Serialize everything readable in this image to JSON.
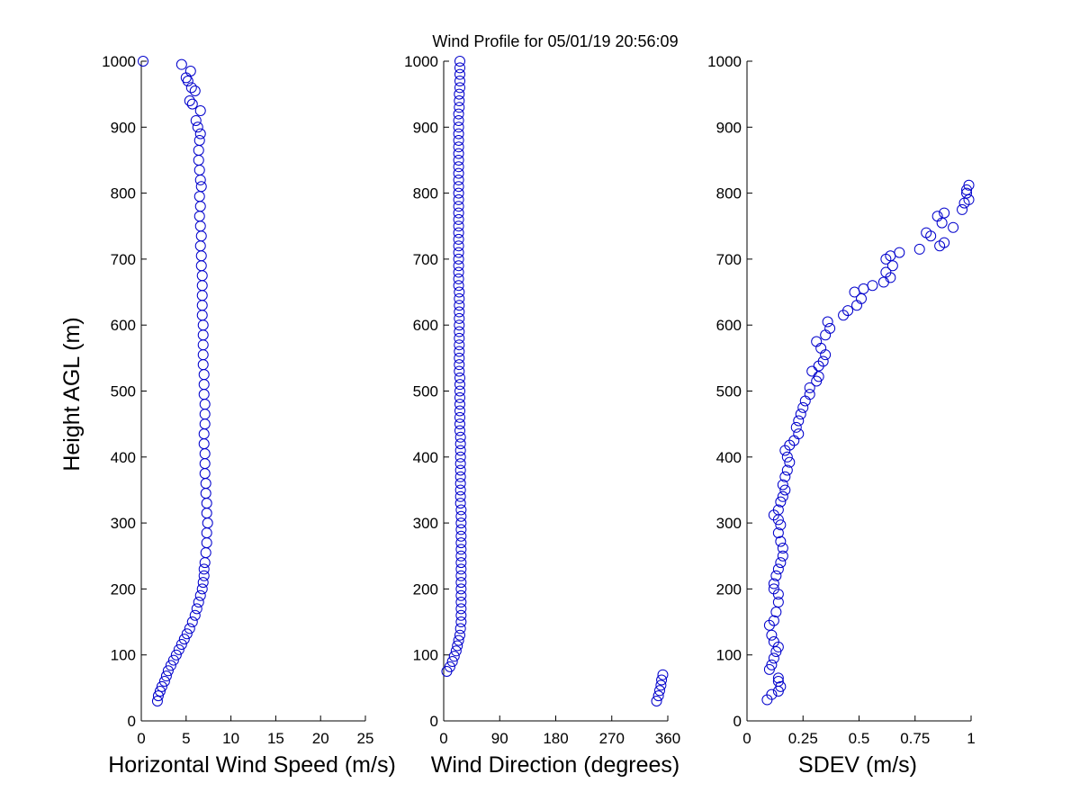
{
  "figure": {
    "title": "Wind Profile for  05/01/19 20:56:09",
    "ylabel": "Height AGL (m)",
    "marker_color": "#0000cc"
  },
  "chart_data": [
    {
      "type": "scatter",
      "xlabel": "Horizontal Wind Speed (m/s)",
      "ylabel": "Height AGL (m)",
      "xlim": [
        0,
        25
      ],
      "ylim": [
        0,
        1000
      ],
      "xticks": [
        0,
        5,
        10,
        15,
        20,
        25
      ],
      "yticks": [
        0,
        100,
        200,
        300,
        400,
        500,
        600,
        700,
        800,
        900,
        1000
      ],
      "grid": false,
      "marker": "open-circle",
      "points": [
        [
          1.8,
          30
        ],
        [
          1.9,
          38
        ],
        [
          2.1,
          45
        ],
        [
          2.3,
          52
        ],
        [
          2.6,
          60
        ],
        [
          2.8,
          68
        ],
        [
          3.0,
          76
        ],
        [
          3.3,
          84
        ],
        [
          3.6,
          92
        ],
        [
          3.9,
          100
        ],
        [
          4.2,
          108
        ],
        [
          4.5,
          116
        ],
        [
          4.8,
          124
        ],
        [
          5.1,
          132
        ],
        [
          5.4,
          140
        ],
        [
          5.7,
          150
        ],
        [
          6.0,
          160
        ],
        [
          6.2,
          170
        ],
        [
          6.4,
          180
        ],
        [
          6.6,
          190
        ],
        [
          6.8,
          200
        ],
        [
          6.9,
          210
        ],
        [
          7.0,
          220
        ],
        [
          7.0,
          230
        ],
        [
          7.1,
          240
        ],
        [
          7.2,
          255
        ],
        [
          7.3,
          270
        ],
        [
          7.3,
          285
        ],
        [
          7.4,
          300
        ],
        [
          7.3,
          315
        ],
        [
          7.3,
          330
        ],
        [
          7.2,
          345
        ],
        [
          7.2,
          360
        ],
        [
          7.1,
          375
        ],
        [
          7.1,
          390
        ],
        [
          7.1,
          405
        ],
        [
          7.0,
          420
        ],
        [
          7.0,
          435
        ],
        [
          7.1,
          450
        ],
        [
          7.1,
          465
        ],
        [
          7.1,
          480
        ],
        [
          7.0,
          495
        ],
        [
          7.0,
          510
        ],
        [
          7.0,
          525
        ],
        [
          6.9,
          540
        ],
        [
          6.9,
          555
        ],
        [
          6.9,
          570
        ],
        [
          6.9,
          585
        ],
        [
          6.9,
          600
        ],
        [
          6.8,
          615
        ],
        [
          6.8,
          630
        ],
        [
          6.8,
          645
        ],
        [
          6.8,
          660
        ],
        [
          6.8,
          675
        ],
        [
          6.7,
          690
        ],
        [
          6.7,
          705
        ],
        [
          6.6,
          720
        ],
        [
          6.7,
          735
        ],
        [
          6.6,
          750
        ],
        [
          6.5,
          765
        ],
        [
          6.6,
          780
        ],
        [
          6.5,
          795
        ],
        [
          6.7,
          810
        ],
        [
          6.6,
          820
        ],
        [
          6.5,
          835
        ],
        [
          6.4,
          850
        ],
        [
          6.4,
          865
        ],
        [
          6.5,
          880
        ],
        [
          6.6,
          890
        ],
        [
          6.3,
          900
        ],
        [
          6.1,
          910
        ],
        [
          6.6,
          925
        ],
        [
          5.7,
          935
        ],
        [
          5.4,
          940
        ],
        [
          6.0,
          955
        ],
        [
          5.6,
          960
        ],
        [
          5.2,
          970
        ],
        [
          5.0,
          975
        ],
        [
          5.5,
          985
        ],
        [
          4.5,
          995
        ],
        [
          0.2,
          1000
        ]
      ]
    },
    {
      "type": "scatter",
      "xlabel": "Wind Direction (degrees)",
      "xlim": [
        0,
        360
      ],
      "ylim": [
        0,
        1000
      ],
      "xticks": [
        0,
        90,
        180,
        270,
        360
      ],
      "yticks": [
        0,
        100,
        200,
        300,
        400,
        500,
        600,
        700,
        800,
        900,
        1000
      ],
      "grid": false,
      "marker": "open-circle",
      "points": [
        [
          342,
          30
        ],
        [
          345,
          38
        ],
        [
          347,
          46
        ],
        [
          349,
          54
        ],
        [
          350,
          62
        ],
        [
          352,
          70
        ],
        [
          5,
          75
        ],
        [
          10,
          82
        ],
        [
          14,
          90
        ],
        [
          17,
          98
        ],
        [
          20,
          106
        ],
        [
          22,
          114
        ],
        [
          24,
          122
        ],
        [
          26,
          130
        ],
        [
          27,
          140
        ],
        [
          28,
          150
        ],
        [
          28,
          160
        ],
        [
          28,
          170
        ],
        [
          28,
          180
        ],
        [
          28,
          190
        ],
        [
          28,
          200
        ],
        [
          28,
          210
        ],
        [
          28,
          220
        ],
        [
          28,
          230
        ],
        [
          28,
          240
        ],
        [
          28,
          250
        ],
        [
          28,
          260
        ],
        [
          28,
          270
        ],
        [
          28,
          280
        ],
        [
          28,
          290
        ],
        [
          28,
          300
        ],
        [
          28,
          310
        ],
        [
          28,
          320
        ],
        [
          27,
          330
        ],
        [
          27,
          340
        ],
        [
          27,
          350
        ],
        [
          27,
          360
        ],
        [
          27,
          370
        ],
        [
          27,
          380
        ],
        [
          27,
          390
        ],
        [
          27,
          400
        ],
        [
          27,
          410
        ],
        [
          27,
          420
        ],
        [
          27,
          430
        ],
        [
          26,
          440
        ],
        [
          26,
          450
        ],
        [
          26,
          460
        ],
        [
          26,
          470
        ],
        [
          26,
          480
        ],
        [
          26,
          490
        ],
        [
          26,
          500
        ],
        [
          26,
          510
        ],
        [
          26,
          520
        ],
        [
          25,
          530
        ],
        [
          25,
          540
        ],
        [
          25,
          550
        ],
        [
          25,
          560
        ],
        [
          25,
          570
        ],
        [
          25,
          580
        ],
        [
          25,
          590
        ],
        [
          25,
          600
        ],
        [
          25,
          610
        ],
        [
          25,
          620
        ],
        [
          25,
          630
        ],
        [
          25,
          640
        ],
        [
          25,
          650
        ],
        [
          24,
          660
        ],
        [
          24,
          670
        ],
        [
          24,
          680
        ],
        [
          24,
          690
        ],
        [
          24,
          700
        ],
        [
          24,
          710
        ],
        [
          24,
          720
        ],
        [
          24,
          730
        ],
        [
          24,
          740
        ],
        [
          24,
          750
        ],
        [
          24,
          760
        ],
        [
          24,
          770
        ],
        [
          24,
          780
        ],
        [
          24,
          790
        ],
        [
          24,
          800
        ],
        [
          24,
          810
        ],
        [
          24,
          820
        ],
        [
          24,
          830
        ],
        [
          24,
          840
        ],
        [
          24,
          850
        ],
        [
          24,
          860
        ],
        [
          24,
          870
        ],
        [
          24,
          880
        ],
        [
          24,
          890
        ],
        [
          24,
          900
        ],
        [
          24,
          910
        ],
        [
          24,
          920
        ],
        [
          25,
          930
        ],
        [
          25,
          940
        ],
        [
          25,
          950
        ],
        [
          26,
          960
        ],
        [
          26,
          970
        ],
        [
          26,
          980
        ],
        [
          26,
          990
        ],
        [
          26,
          1000
        ]
      ]
    },
    {
      "type": "scatter",
      "xlabel": "SDEV  (m/s)",
      "xlim": [
        0,
        1
      ],
      "ylim": [
        0,
        1000
      ],
      "xticks": [
        "0",
        "0.25",
        "0.5",
        "0.75",
        "1"
      ],
      "xtick_values": [
        0,
        0.25,
        0.5,
        0.75,
        1
      ],
      "yticks": [
        0,
        100,
        200,
        300,
        400,
        500,
        600,
        700,
        800,
        900,
        1000
      ],
      "grid": false,
      "marker": "open-circle",
      "points": [
        [
          0.09,
          32
        ],
        [
          0.11,
          40
        ],
        [
          0.14,
          45
        ],
        [
          0.15,
          52
        ],
        [
          0.14,
          60
        ],
        [
          0.14,
          65
        ],
        [
          0.1,
          78
        ],
        [
          0.11,
          85
        ],
        [
          0.12,
          95
        ],
        [
          0.13,
          105
        ],
        [
          0.14,
          112
        ],
        [
          0.12,
          120
        ],
        [
          0.11,
          130
        ],
        [
          0.1,
          145
        ],
        [
          0.12,
          152
        ],
        [
          0.13,
          165
        ],
        [
          0.14,
          180
        ],
        [
          0.14,
          192
        ],
        [
          0.12,
          200
        ],
        [
          0.12,
          208
        ],
        [
          0.13,
          220
        ],
        [
          0.14,
          230
        ],
        [
          0.15,
          240
        ],
        [
          0.16,
          250
        ],
        [
          0.16,
          262
        ],
        [
          0.15,
          272
        ],
        [
          0.14,
          285
        ],
        [
          0.15,
          297
        ],
        [
          0.14,
          305
        ],
        [
          0.12,
          312
        ],
        [
          0.14,
          320
        ],
        [
          0.15,
          332
        ],
        [
          0.16,
          340
        ],
        [
          0.17,
          350
        ],
        [
          0.16,
          358
        ],
        [
          0.17,
          370
        ],
        [
          0.18,
          380
        ],
        [
          0.19,
          392
        ],
        [
          0.18,
          400
        ],
        [
          0.17,
          410
        ],
        [
          0.19,
          418
        ],
        [
          0.21,
          425
        ],
        [
          0.23,
          435
        ],
        [
          0.22,
          445
        ],
        [
          0.23,
          455
        ],
        [
          0.24,
          465
        ],
        [
          0.25,
          475
        ],
        [
          0.26,
          485
        ],
        [
          0.28,
          495
        ],
        [
          0.28,
          505
        ],
        [
          0.31,
          515
        ],
        [
          0.32,
          522
        ],
        [
          0.29,
          530
        ],
        [
          0.32,
          538
        ],
        [
          0.34,
          545
        ],
        [
          0.35,
          555
        ],
        [
          0.33,
          565
        ],
        [
          0.31,
          575
        ],
        [
          0.35,
          585
        ],
        [
          0.37,
          595
        ],
        [
          0.36,
          605
        ],
        [
          0.43,
          615
        ],
        [
          0.45,
          622
        ],
        [
          0.49,
          630
        ],
        [
          0.51,
          640
        ],
        [
          0.48,
          650
        ],
        [
          0.52,
          655
        ],
        [
          0.56,
          660
        ],
        [
          0.61,
          665
        ],
        [
          0.64,
          672
        ],
        [
          0.62,
          680
        ],
        [
          0.65,
          690
        ],
        [
          0.62,
          700
        ],
        [
          0.64,
          705
        ],
        [
          0.68,
          710
        ],
        [
          0.77,
          715
        ],
        [
          0.86,
          720
        ],
        [
          0.88,
          725
        ],
        [
          0.82,
          735
        ],
        [
          0.8,
          740
        ],
        [
          0.92,
          748
        ],
        [
          0.87,
          755
        ],
        [
          0.85,
          765
        ],
        [
          0.88,
          770
        ],
        [
          0.96,
          775
        ],
        [
          0.97,
          785
        ],
        [
          0.99,
          790
        ],
        [
          0.98,
          800
        ],
        [
          0.98,
          805
        ],
        [
          0.99,
          812
        ]
      ]
    }
  ]
}
